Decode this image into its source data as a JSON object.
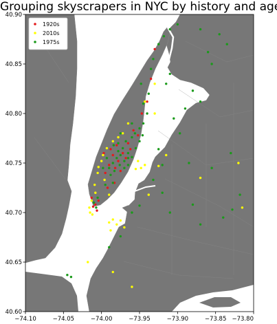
{
  "chart_data": {
    "type": "scatter",
    "title": "Grouping skyscrapers in NYC by history and age",
    "xlabel": "",
    "ylabel": "",
    "xlim": [
      -74.1,
      -73.8
    ],
    "ylim": [
      40.6,
      40.9
    ],
    "x_ticks": [
      "−74.10",
      "−74.05",
      "−74.00",
      "−73.95",
      "−73.90",
      "−73.85",
      "−73.80"
    ],
    "x_tick_values": [
      -74.1,
      -74.05,
      -74.0,
      -73.95,
      -73.9,
      -73.85,
      -73.8
    ],
    "y_ticks": [
      "40.60",
      "40.65",
      "40.70",
      "40.75",
      "40.80",
      "40.85",
      "40.90"
    ],
    "y_tick_values": [
      40.6,
      40.65,
      40.7,
      40.75,
      40.8,
      40.85,
      40.9
    ],
    "background_map": "New York City (Manhattan, Brooklyn, Queens, Bronx, Jersey City) land in gray on white water",
    "legend_position": "upper-left",
    "grid": false,
    "series": [
      {
        "name": "1920s",
        "color": "#e41a1c",
        "points": [
          [
            -73.985,
            40.758
          ],
          [
            -73.978,
            40.752
          ],
          [
            -73.99,
            40.748
          ],
          [
            -73.972,
            40.76
          ],
          [
            -73.982,
            40.745
          ],
          [
            -73.968,
            40.755
          ],
          [
            -74.008,
            40.708
          ],
          [
            -74.011,
            40.706
          ],
          [
            -74.004,
            40.712
          ],
          [
            -73.995,
            40.74
          ],
          [
            -73.988,
            40.764
          ],
          [
            -73.975,
            40.742
          ],
          [
            -74.013,
            40.715
          ],
          [
            -73.965,
            40.77
          ],
          [
            -73.958,
            40.783
          ],
          [
            -73.947,
            40.8
          ],
          [
            -73.94,
            40.812
          ],
          [
            -73.952,
            40.778
          ],
          [
            -73.992,
            40.725
          ],
          [
            -73.983,
            40.73
          ],
          [
            -74.006,
            40.702
          ],
          [
            -73.997,
            40.76
          ],
          [
            -73.98,
            40.768
          ],
          [
            -73.962,
            40.764
          ],
          [
            -73.935,
            40.835
          ],
          [
            -73.93,
            40.865
          ]
        ]
      },
      {
        "name": "2010s",
        "color": "#ffff00",
        "points": [
          [
            -74.0,
            40.752
          ],
          [
            -74.004,
            40.746
          ],
          [
            -73.998,
            40.758
          ],
          [
            -73.993,
            40.765
          ],
          [
            -74.005,
            40.74
          ],
          [
            -73.985,
            40.772
          ],
          [
            -73.996,
            40.733
          ],
          [
            -74.009,
            40.728
          ],
          [
            -74.013,
            40.712
          ],
          [
            -74.016,
            40.705
          ],
          [
            -74.015,
            40.7
          ],
          [
            -74.012,
            40.698
          ],
          [
            -73.948,
            40.745
          ],
          [
            -73.943,
            40.748
          ],
          [
            -73.952,
            40.752
          ],
          [
            -73.955,
            40.744
          ],
          [
            -73.99,
            40.69
          ],
          [
            -73.985,
            40.693
          ],
          [
            -73.98,
            40.688
          ],
          [
            -73.975,
            40.692
          ],
          [
            -73.988,
            40.682
          ],
          [
            -73.97,
            40.685
          ],
          [
            -73.938,
            40.718
          ],
          [
            -73.925,
            40.747
          ],
          [
            -73.915,
            40.758
          ],
          [
            -73.87,
            40.735
          ],
          [
            -73.82,
            40.75
          ],
          [
            -73.815,
            40.705
          ],
          [
            -73.985,
            40.64
          ],
          [
            -74.018,
            40.65
          ],
          [
            -73.93,
            40.8
          ],
          [
            -73.943,
            40.812
          ],
          [
            -73.93,
            40.83
          ],
          [
            -73.965,
            40.79
          ],
          [
            -73.972,
            40.78
          ],
          [
            -73.978,
            40.776
          ],
          [
            -74.008,
            40.72
          ],
          [
            -73.99,
            40.718
          ],
          [
            -73.96,
            40.625
          ]
        ]
      },
      {
        "name": "1975s",
        "color": "#1a9a1a",
        "points": [
          [
            -73.98,
            40.755
          ],
          [
            -73.975,
            40.758
          ],
          [
            -73.97,
            40.752
          ],
          [
            -73.985,
            40.75
          ],
          [
            -73.978,
            40.762
          ],
          [
            -73.972,
            40.765
          ],
          [
            -73.965,
            40.76
          ],
          [
            -73.968,
            40.772
          ],
          [
            -73.96,
            40.776
          ],
          [
            -73.956,
            40.78
          ],
          [
            -73.95,
            40.785
          ],
          [
            -73.945,
            40.79
          ],
          [
            -73.96,
            40.79
          ],
          [
            -73.975,
            40.78
          ],
          [
            -73.978,
            40.77
          ],
          [
            -73.984,
            40.768
          ],
          [
            -73.99,
            40.745
          ],
          [
            -73.988,
            40.738
          ],
          [
            -73.985,
            40.73
          ],
          [
            -73.995,
            40.728
          ],
          [
            -74.005,
            40.715
          ],
          [
            -74.01,
            40.71
          ],
          [
            -74.007,
            40.705
          ],
          [
            -73.993,
            40.755
          ],
          [
            -73.998,
            40.745
          ],
          [
            -73.965,
            40.748
          ],
          [
            -73.96,
            40.756
          ],
          [
            -73.955,
            40.765
          ],
          [
            -73.95,
            40.772
          ],
          [
            -73.946,
            40.778
          ],
          [
            -73.94,
            40.8
          ],
          [
            -73.945,
            40.81
          ],
          [
            -73.938,
            40.82
          ],
          [
            -73.948,
            40.83
          ],
          [
            -73.935,
            40.845
          ],
          [
            -73.932,
            40.855
          ],
          [
            -73.925,
            40.87
          ],
          [
            -73.918,
            40.878
          ],
          [
            -73.91,
            40.885
          ],
          [
            -73.9,
            40.89
          ],
          [
            -73.87,
            40.885
          ],
          [
            -73.86,
            40.862
          ],
          [
            -73.855,
            40.85
          ],
          [
            -73.845,
            40.88
          ],
          [
            -73.835,
            40.87
          ],
          [
            -73.88,
            40.823
          ],
          [
            -73.87,
            40.812
          ],
          [
            -73.89,
            40.805
          ],
          [
            -73.915,
            40.83
          ],
          [
            -73.91,
            40.84
          ],
          [
            -73.905,
            40.795
          ],
          [
            -73.897,
            40.78
          ],
          [
            -73.925,
            40.764
          ],
          [
            -73.92,
            40.748
          ],
          [
            -73.885,
            40.75
          ],
          [
            -73.855,
            40.745
          ],
          [
            -73.83,
            40.76
          ],
          [
            -73.818,
            40.718
          ],
          [
            -73.828,
            40.703
          ],
          [
            -73.84,
            40.695
          ],
          [
            -73.87,
            40.688
          ],
          [
            -73.88,
            40.708
          ],
          [
            -73.91,
            40.7
          ],
          [
            -73.92,
            40.72
          ],
          [
            -73.932,
            40.733
          ],
          [
            -73.95,
            40.707
          ],
          [
            -73.96,
            40.7
          ],
          [
            -73.975,
            40.676
          ],
          [
            -73.99,
            40.665
          ],
          [
            -74.04,
            40.635
          ],
          [
            -74.045,
            40.637
          ],
          [
            -73.965,
            40.755
          ],
          [
            -73.97,
            40.745
          ],
          [
            -73.983,
            40.742
          ],
          [
            -73.976,
            40.748
          ]
        ]
      }
    ]
  }
}
